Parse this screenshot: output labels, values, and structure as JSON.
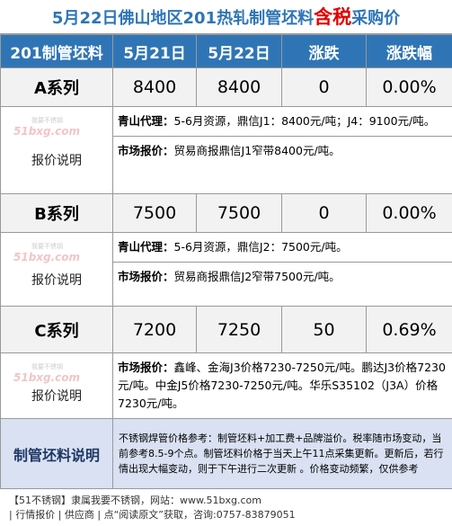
{
  "title": {
    "main": "5月22日佛山地区201热轧制管坯料",
    "tax": "含税",
    "suffix": "采购价"
  },
  "table": {
    "header": [
      "201制管坯料",
      "5月21日",
      "5月22日",
      "涨跌",
      "涨跌幅"
    ],
    "rows": [
      {
        "cells": [
          "A系列",
          "8400",
          "8400",
          "0",
          "0.00%"
        ],
        "note_label": "报价说明",
        "notes": [
          {
            "label": "青山代理：",
            "text": "5-6月资源，鼎信J1：8400元/吨；J4：9100元/吨。"
          },
          {
            "label": "市场报价：",
            "text": "贸易商报鼎信J1窄带8400元/吨。"
          }
        ]
      },
      {
        "cells": [
          "B系列",
          "7500",
          "7500",
          "0",
          "0.00%"
        ],
        "note_label": "报价说明",
        "notes": [
          {
            "label": "青山代理：",
            "text": "5-6月资源，鼎信J2：7500元/吨。"
          },
          {
            "label": "市场报价：",
            "text": "贸易商报鼎信J2窄带7500元/吨。"
          }
        ]
      },
      {
        "cells": [
          "C系列",
          "7200",
          "7250",
          "50",
          "0.69%"
        ],
        "note_label": "报价说明",
        "notes": [
          {
            "label": "市场报价：",
            "text": "鑫峰、金海J3价格7230-7250元/吨。鹏达J3价格7230元/吨。中金J5价格7230-7250元/吨。华乐S35102（J3A）价格7230元/吨。"
          }
        ]
      }
    ]
  },
  "watermark": {
    "logo": "51bxg.com",
    "tag": "我要不锈钢"
  },
  "explanation": {
    "label": "制管坯料说明",
    "text": "不锈钢焊管价格参考：制管坯料+加工费+品牌溢价。税率随市场变动，当前参考8.5-9个点。制管坯料价格于当天上午11点采集更新。更新后，若行情出现大幅变动，则于下午进行二次更新 。价格变动频繁，仅供参考"
  },
  "footer": {
    "line1": "【51不锈钢】隶属我要不锈钢，网站：www.51bxg.com",
    "line2": "| 行情报价 | 供应商 | 点“阅读原文”获取，咨询:0757-83879051"
  }
}
